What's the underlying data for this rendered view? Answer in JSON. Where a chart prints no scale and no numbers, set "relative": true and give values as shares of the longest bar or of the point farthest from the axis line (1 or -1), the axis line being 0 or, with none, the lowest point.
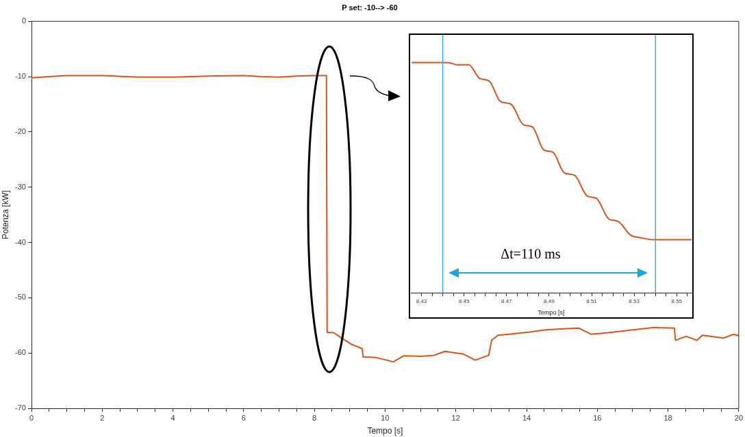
{
  "chart_data": [
    {
      "type": "line",
      "title": "P set: -10--> -60",
      "xlabel": "Tempo [s]",
      "ylabel": "Potenza [kW]",
      "color": "#d95319",
      "x": [
        0,
        0.5,
        1,
        2,
        3,
        4,
        5,
        6,
        6.5,
        7,
        7.5,
        8,
        8.34,
        8.36,
        8.54,
        8.77,
        9.07,
        9.35,
        9.38,
        9.74,
        10.23,
        10.53,
        11.02,
        11.39,
        11.69,
        12.22,
        12.55,
        12.93,
        13.01,
        13.19,
        13.64,
        14.09,
        14.54,
        15.14,
        15.48,
        15.82,
        16.34,
        17.02,
        17.58,
        18.18,
        18.21,
        18.51,
        18.82,
        18.97,
        19.56,
        19.86,
        20
      ],
      "values": [
        -10.2,
        -10,
        -9.8,
        -9.8,
        -10.1,
        -10.1,
        -9.9,
        -9.8,
        -10,
        -10.1,
        -9.9,
        -9.8,
        -9.8,
        -56.3,
        -56.3,
        -57.3,
        -58.5,
        -59.2,
        -60.7,
        -60.8,
        -61.6,
        -60.5,
        -60.6,
        -60.4,
        -59.7,
        -60.2,
        -61.3,
        -60.4,
        -57.7,
        -56.8,
        -56.5,
        -56.2,
        -55.8,
        -55.6,
        -55.5,
        -56.6,
        -56.3,
        -55.8,
        -55.4,
        -55.5,
        -57.7,
        -57,
        -57.7,
        -56.8,
        -57.3,
        -56.6,
        -56.9
      ],
      "xlim": [
        0,
        20
      ],
      "ylim": [
        -70,
        0
      ],
      "xticks": [
        0,
        {
          "value": 0.5,
          "label": null
        },
        {
          "value": 1,
          "label": null
        },
        {
          "value": 1.5,
          "label": null
        },
        2,
        {
          "value": 2.5,
          "label": null
        },
        {
          "value": 3,
          "label": null
        },
        {
          "value": 3.5,
          "label": null
        },
        4,
        {
          "value": 4.5,
          "label": null
        },
        {
          "value": 5,
          "label": null
        },
        {
          "value": 5.5,
          "label": null
        },
        6,
        {
          "value": 6.5,
          "label": null
        },
        {
          "value": 7,
          "label": null
        },
        {
          "value": 7.5,
          "label": null
        },
        8,
        {
          "value": 8.5,
          "label": null
        },
        {
          "value": 9,
          "label": null
        },
        {
          "value": 9.5,
          "label": null
        },
        10,
        {
          "value": 10.5,
          "label": null
        },
        {
          "value": 11,
          "label": null
        },
        {
          "value": 11.5,
          "label": null
        },
        12,
        {
          "value": 12.5,
          "label": null
        },
        {
          "value": 13,
          "label": null
        },
        {
          "value": 13.5,
          "label": null
        },
        14,
        {
          "value": 14.5,
          "label": null
        },
        {
          "value": 15,
          "label": null
        },
        {
          "value": 15.5,
          "label": null
        },
        16,
        {
          "value": 16.5,
          "label": null
        },
        {
          "value": 17,
          "label": null
        },
        {
          "value": 17.5,
          "label": null
        },
        18,
        {
          "value": 18.5,
          "label": null
        },
        {
          "value": 19,
          "label": null
        },
        {
          "value": 19.5,
          "label": null
        },
        20
      ],
      "yticks": [
        -70,
        -60,
        -50,
        -40,
        -30,
        -20,
        -10,
        0
      ],
      "grid": false
    },
    {
      "type": "line",
      "xlabel": "Tempo [s]",
      "color": "#d95319",
      "relative": true,
      "tick_labels": "x",
      "x": [
        8.4254,
        8.4425,
        8.4468,
        8.4522,
        8.4575,
        8.4618,
        8.4672,
        8.472,
        8.4779,
        8.4822,
        8.4875,
        8.4918,
        8.4972,
        8.502,
        8.5079,
        8.5122,
        8.5181,
        8.5224,
        8.5283,
        8.5325,
        8.539,
        8.5454,
        8.557
      ],
      "values": [
        1,
        1,
        0.99,
        0.99,
        0.93,
        0.92,
        0.83,
        0.82,
        0.73,
        0.72,
        0.62,
        0.61,
        0.52,
        0.51,
        0.42,
        0.41,
        0.32,
        0.31,
        0.25,
        0.24,
        0.23,
        0.23,
        0.23
      ],
      "xlim": [
        8.425,
        8.557
      ],
      "xticks": [
        8.43,
        {
          "value": 8.435,
          "label": null
        },
        {
          "value": 8.44,
          "label": null
        },
        {
          "value": 8.445,
          "label": null
        },
        8.45,
        {
          "value": 8.455,
          "label": null
        },
        {
          "value": 8.46,
          "label": null
        },
        {
          "value": 8.465,
          "label": null
        },
        8.47,
        {
          "value": 8.475,
          "label": null
        },
        {
          "value": 8.48,
          "label": null
        },
        {
          "value": 8.485,
          "label": null
        },
        8.49,
        {
          "value": 8.495,
          "label": null
        },
        {
          "value": 8.5,
          "label": null
        },
        {
          "value": 8.505,
          "label": null
        },
        8.51,
        {
          "value": 8.515,
          "label": null
        },
        {
          "value": 8.52,
          "label": null
        },
        {
          "value": 8.525,
          "label": null
        },
        8.53,
        {
          "value": 8.535,
          "label": null
        },
        {
          "value": 8.54,
          "label": null
        },
        {
          "value": 8.545,
          "label": null
        },
        8.55,
        {
          "value": 8.555,
          "label": null
        }
      ],
      "ref_lines": [
        {
          "axis": "x",
          "value": 8.44,
          "color": "#1aa6e0"
        },
        {
          "axis": "x",
          "value": 8.54,
          "color": "#1aa6e0"
        }
      ],
      "annotations": [
        "Δt=110 ms"
      ]
    }
  ]
}
